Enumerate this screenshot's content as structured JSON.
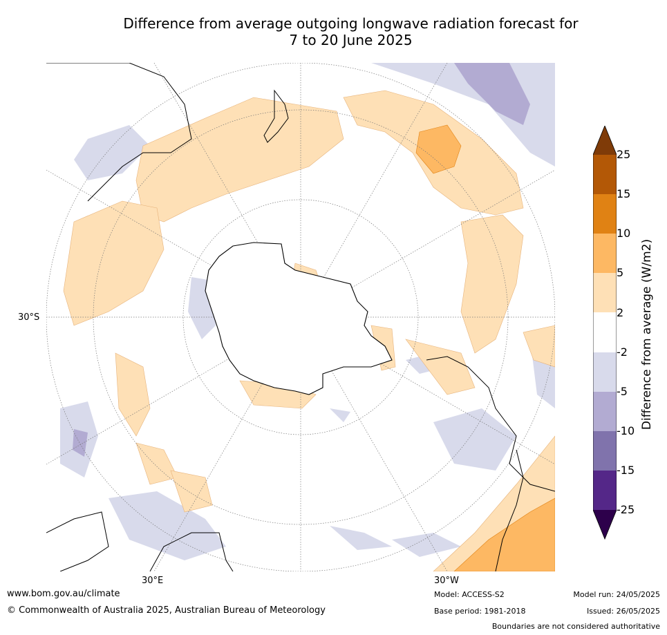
{
  "title_line1": "Difference from average outgoing longwave radiation forecast for",
  "title_line2": "7 to 20 June 2025",
  "map_labels": {
    "lat_left": "30°S",
    "lon_bottom_left": "30°E",
    "lon_bottom_right": "30°W"
  },
  "colorbar": {
    "title": "Difference from average (W/m2)",
    "ticks": [
      "25",
      "15",
      "10",
      "5",
      "2",
      "-2",
      "-5",
      "-10",
      "-15",
      "-25"
    ],
    "colors": {
      "above_max": "#7f3b08",
      "b15_25": "#b35806",
      "b10_15": "#e08214",
      "b5_10": "#fdb863",
      "b2_5": "#fee0b6",
      "neutral": "#ffffff",
      "bm5_m2": "#d8daeb",
      "bm10_m5": "#b2abd2",
      "bm15_m10": "#8073ac",
      "bm25_m15": "#542788",
      "below_min": "#2d004b"
    }
  },
  "footer": {
    "website": "www.bom.gov.au/climate",
    "copyright": "© Commonwealth of Australia 2025, Australian Bureau of Meteorology",
    "model": "Model: ACCESS-S2",
    "base_period": "Base period: 1981-2018",
    "model_run": "Model run: 24/05/2025",
    "issued": "Issued: 26/05/2025",
    "boundaries": "Boundaries are not considered authoritative"
  }
}
